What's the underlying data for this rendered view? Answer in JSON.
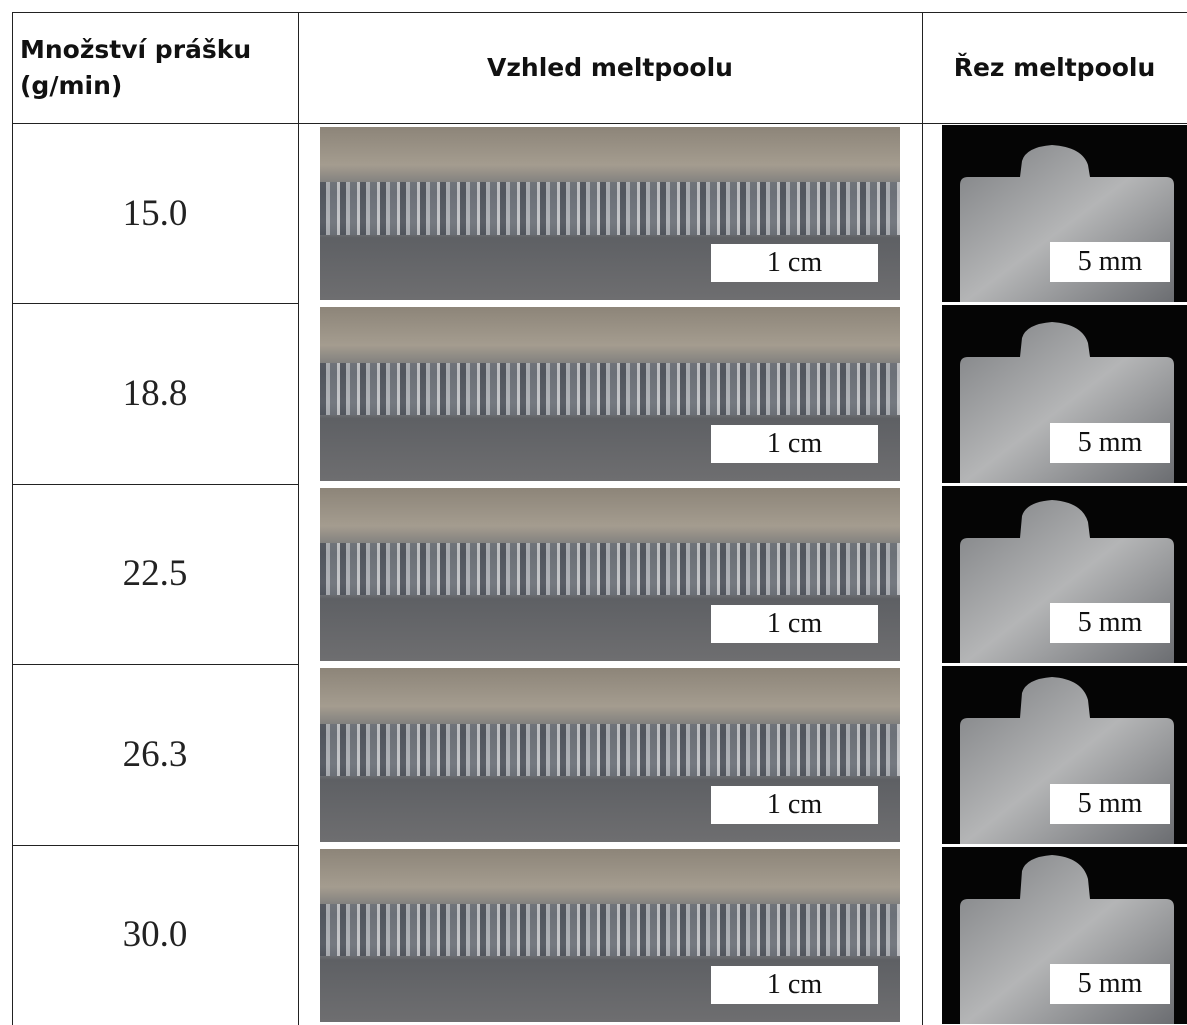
{
  "table": {
    "header": [
      "Množství prášku (g/min)",
      "Vzhled meltpoolu",
      "Řez meltpoolu"
    ],
    "rows": [
      [
        "15.0",
        "1 cm",
        "5 mm"
      ],
      [
        "18.8",
        "1 cm",
        "5 mm"
      ],
      [
        "22.5",
        "1 cm",
        "5 mm"
      ],
      [
        "26.3",
        "1 cm",
        "5 mm"
      ],
      [
        "30.0",
        "1 cm",
        "5 mm"
      ]
    ]
  }
}
